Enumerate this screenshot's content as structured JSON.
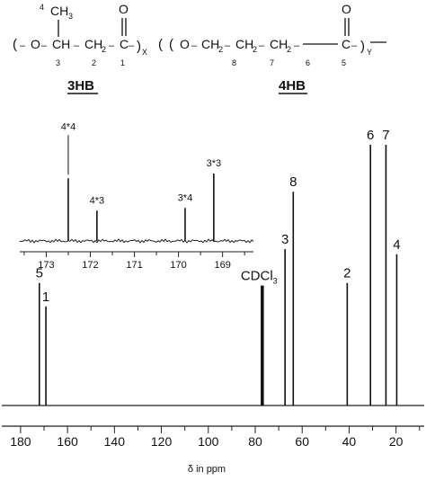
{
  "structure": {
    "atoms_3hb": [
      "O",
      "CH",
      "CH",
      "C"
    ],
    "atoms_4hb": [
      "O",
      "CH",
      "CH",
      "CH",
      "C"
    ],
    "subscript_2": "2",
    "methyl": "CH",
    "methyl_sub": "3",
    "carbonyl": "O",
    "bond_dash": "–",
    "paren_open": "(",
    "paren_close": ")",
    "repeat_x": "X",
    "repeat_y": "Y",
    "carbon_numbers_3hb": [
      "4",
      "3",
      "2",
      "1"
    ],
    "carbon_numbers_4hb": [
      "8",
      "7",
      "6",
      "5"
    ],
    "unit_3hb": "3HB",
    "unit_4hb": "4HB"
  },
  "chart_data": [
    {
      "type": "line",
      "description": "13C NMR spectrum (main)",
      "xlabel": "δ in ppm",
      "xlim": [
        188,
        8
      ],
      "x_reversed": true,
      "x_ticks": [
        180,
        160,
        140,
        120,
        100,
        80,
        60,
        40,
        20
      ],
      "peaks": [
        {
          "label": "5",
          "ppm": 172.0,
          "height": 0.47
        },
        {
          "label": "1",
          "ppm": 169.2,
          "height": 0.38
        },
        {
          "label": "CDCl3",
          "ppm": 77.0,
          "height": 0.46
        },
        {
          "label": "3",
          "ppm": 67.3,
          "height": 0.6
        },
        {
          "label": "8",
          "ppm": 63.8,
          "height": 0.82
        },
        {
          "label": "2",
          "ppm": 40.8,
          "height": 0.47
        },
        {
          "label": "6",
          "ppm": 30.9,
          "height": 1.0
        },
        {
          "label": "7",
          "ppm": 24.3,
          "height": 1.0
        },
        {
          "label": "4",
          "ppm": 19.7,
          "height": 0.58
        }
      ],
      "peak_labels": {
        "5": "5",
        "1": "1",
        "CDCl3": "CDCl",
        "CDCl3_sub": "3",
        "3": "3",
        "8": "8",
        "2": "2",
        "6": "6",
        "7": "7",
        "4": "4"
      }
    },
    {
      "type": "line",
      "description": "carbonyl region inset",
      "xlim": [
        173.6,
        168.3
      ],
      "x_reversed": true,
      "x_ticks": [
        173,
        172,
        171,
        170,
        169
      ],
      "peaks": [
        {
          "label": "4*4",
          "ppm": 172.5,
          "height": 0.93
        },
        {
          "label": "4*3",
          "ppm": 171.85,
          "height": 0.45
        },
        {
          "label": "3*4",
          "ppm": 169.85,
          "height": 0.49
        },
        {
          "label": "3*3",
          "ppm": 169.2,
          "height": 1.0
        }
      ]
    }
  ]
}
